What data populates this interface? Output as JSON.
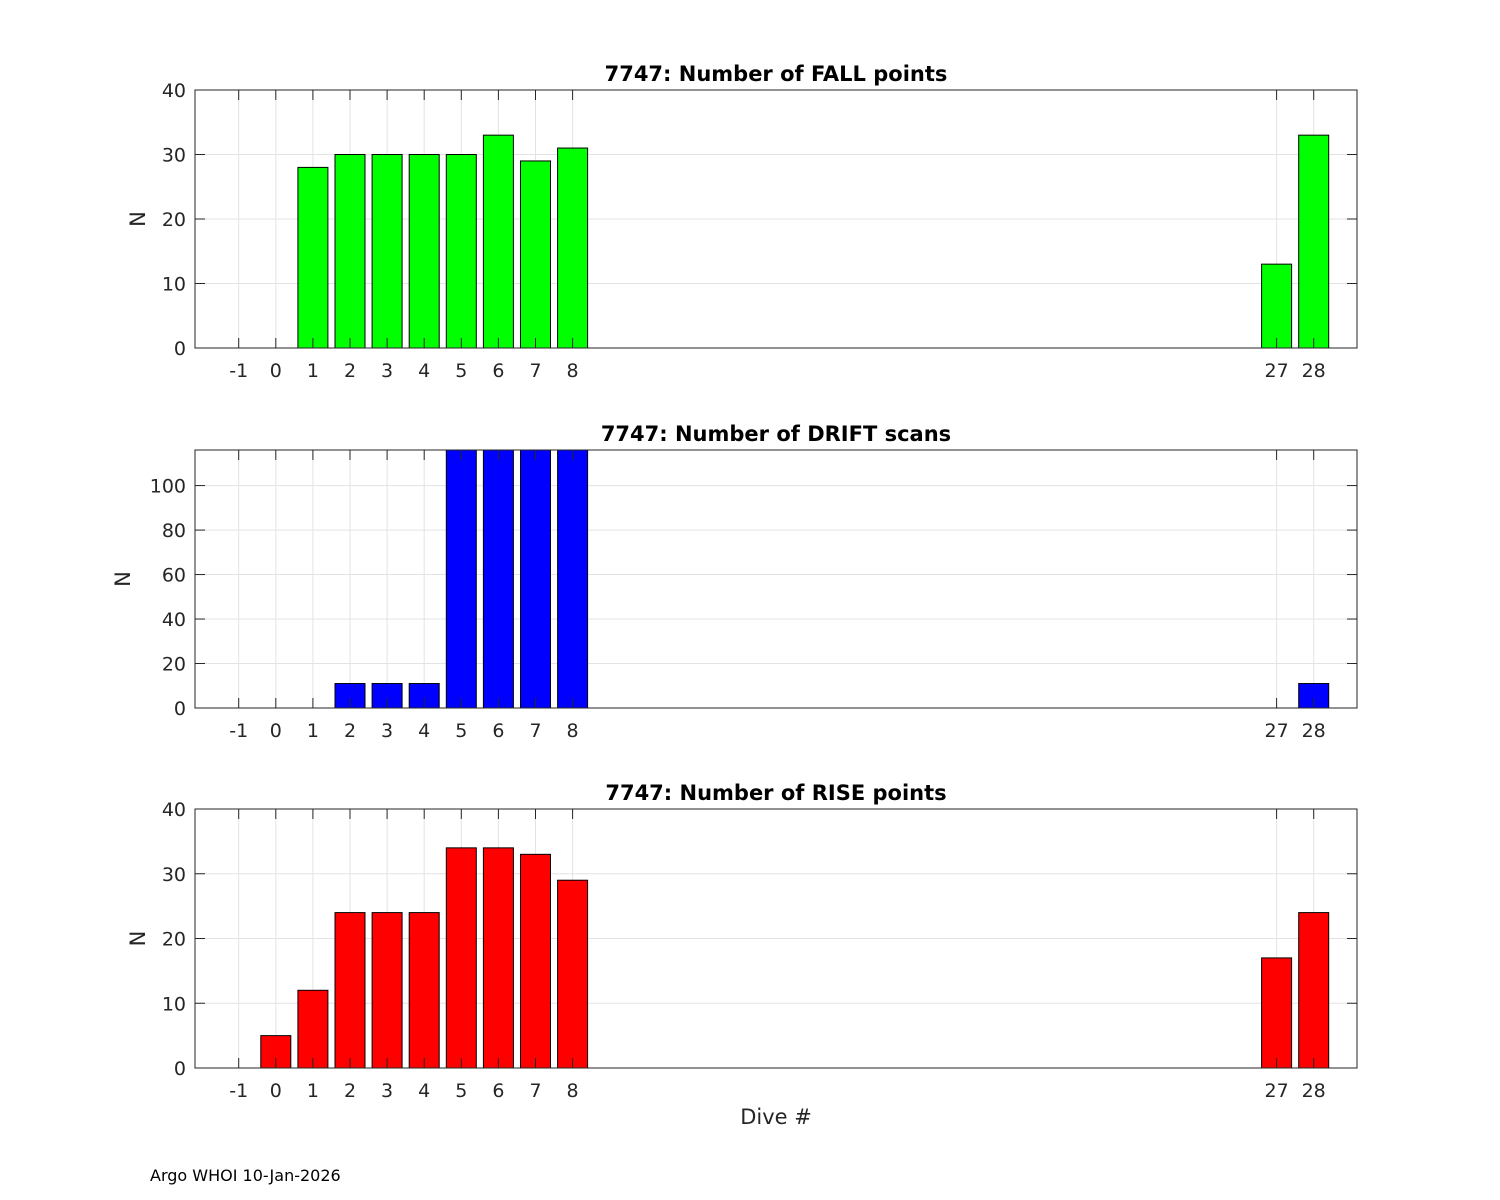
{
  "chart_data": [
    {
      "type": "bar",
      "title": "7747: Number of FALL points",
      "xlabel": "",
      "ylabel": "N",
      "categories": [
        -1,
        0,
        1,
        2,
        3,
        4,
        5,
        6,
        7,
        8,
        27,
        28
      ],
      "values": [
        0,
        0,
        28,
        30,
        30,
        30,
        30,
        33,
        29,
        31,
        13,
        33
      ],
      "ylim": [
        0,
        40
      ],
      "yticks": [
        0,
        10,
        20,
        30,
        40
      ],
      "color": "#00ff00",
      "grid": true
    },
    {
      "type": "bar",
      "title": "7747: Number of DRIFT scans",
      "xlabel": "",
      "ylabel": "N",
      "categories": [
        -1,
        0,
        1,
        2,
        3,
        4,
        5,
        6,
        7,
        8,
        27,
        28
      ],
      "values": [
        0,
        0,
        0,
        11,
        11,
        11,
        120,
        120,
        120,
        120,
        0,
        11
      ],
      "ylim": [
        0,
        116
      ],
      "yticks": [
        0,
        20,
        40,
        60,
        80,
        100
      ],
      "color": "#0000ff",
      "grid": true
    },
    {
      "type": "bar",
      "title": "7747: Number of RISE points",
      "xlabel": "Dive #",
      "ylabel": "N",
      "categories": [
        -1,
        0,
        1,
        2,
        3,
        4,
        5,
        6,
        7,
        8,
        27,
        28
      ],
      "values": [
        0,
        5,
        12,
        24,
        24,
        24,
        34,
        34,
        33,
        29,
        17,
        24
      ],
      "ylim": [
        0,
        40
      ],
      "yticks": [
        0,
        10,
        20,
        30,
        40
      ],
      "color": "#ff0000",
      "grid": true
    }
  ],
  "footer": "Argo WHOI 10-Jan-2026"
}
